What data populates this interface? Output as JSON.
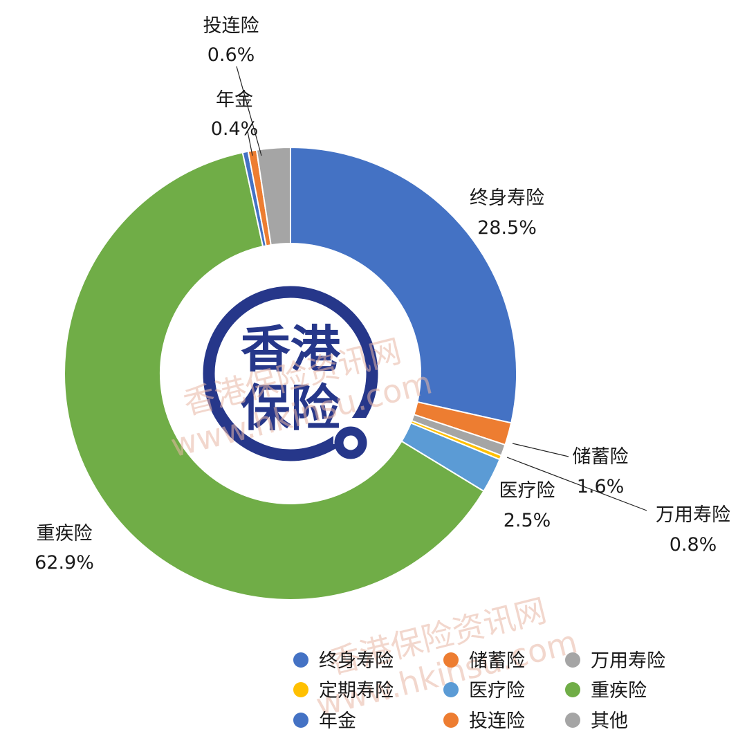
{
  "chart_data": {
    "type": "pie",
    "variant": "donut",
    "title": "",
    "slices": [
      {
        "name": "终身寿险",
        "value": 28.5,
        "label": "28.5%",
        "color": "#4472C4"
      },
      {
        "name": "储蓄险",
        "value": 1.6,
        "label": "1.6%",
        "color": "#ED7D31"
      },
      {
        "name": "万用寿险",
        "value": 0.8,
        "label": "0.8%",
        "color": "#A5A5A5"
      },
      {
        "name": "定期寿险",
        "value": 0.3,
        "label": "",
        "color": "#FFC000"
      },
      {
        "name": "医疗险",
        "value": 2.5,
        "label": "2.5%",
        "color": "#5B9BD5"
      },
      {
        "name": "重疾险",
        "value": 62.9,
        "label": "62.9%",
        "color": "#70AD47"
      },
      {
        "name": "年金",
        "value": 0.4,
        "label": "0.4%",
        "color": "#4472C4"
      },
      {
        "name": "投连险",
        "value": 0.6,
        "label": "0.6%",
        "color": "#ED7D31"
      },
      {
        "name": "其他",
        "value": 2.4,
        "label": "",
        "color": "#A5A5A5"
      }
    ],
    "legend": {
      "position": "bottom",
      "items": [
        "终身寿险",
        "储蓄险",
        "万用寿险",
        "定期寿险",
        "医疗险",
        "重疾险",
        "年金",
        "投连险",
        "其他"
      ]
    }
  },
  "logo": {
    "line1": "香港",
    "line2": "保险",
    "color": "#26378a"
  },
  "watermark": {
    "text_cn": "香港保险资讯网",
    "text_url": "www.hkinsu.com"
  }
}
